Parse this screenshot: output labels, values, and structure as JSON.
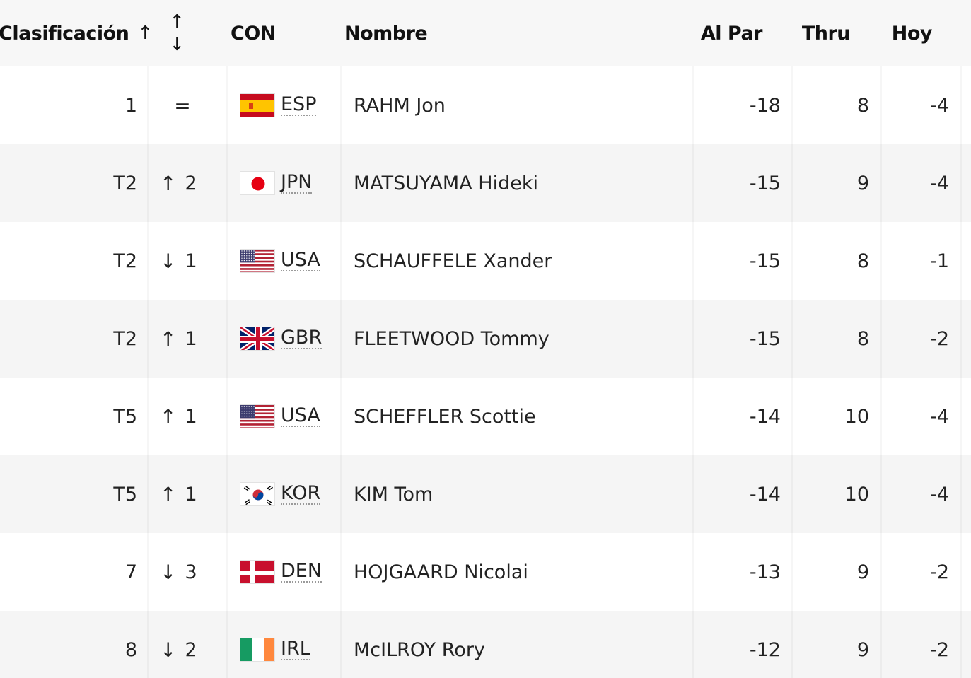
{
  "header": {
    "rank": "Clasificación",
    "rank_sort_icon": "↑",
    "move_up_icon": "↑",
    "move_down_icon": "↓",
    "con": "CON",
    "name": "Nombre",
    "to_par": "Al Par",
    "thru": "Thru",
    "today": "Hoy"
  },
  "rows": [
    {
      "rank": "1",
      "move_dir": "=",
      "move": "",
      "country": "ESP",
      "flag": "spain-flag",
      "name": "RAHM Jon",
      "to_par": "-18",
      "thru": "8",
      "today": "-4"
    },
    {
      "rank": "T2",
      "move_dir": "↑",
      "move": "2",
      "country": "JPN",
      "flag": "japan-flag",
      "name": "MATSUYAMA Hideki",
      "to_par": "-15",
      "thru": "9",
      "today": "-4"
    },
    {
      "rank": "T2",
      "move_dir": "↓",
      "move": "1",
      "country": "USA",
      "flag": "usa-flag",
      "name": "SCHAUFFELE Xander",
      "to_par": "-15",
      "thru": "8",
      "today": "-1"
    },
    {
      "rank": "T2",
      "move_dir": "↑",
      "move": "1",
      "country": "GBR",
      "flag": "uk-flag",
      "name": "FLEETWOOD Tommy",
      "to_par": "-15",
      "thru": "8",
      "today": "-2"
    },
    {
      "rank": "T5",
      "move_dir": "↑",
      "move": "1",
      "country": "USA",
      "flag": "usa-flag",
      "name": "SCHEFFLER Scottie",
      "to_par": "-14",
      "thru": "10",
      "today": "-4"
    },
    {
      "rank": "T5",
      "move_dir": "↑",
      "move": "1",
      "country": "KOR",
      "flag": "south-korea-flag",
      "name": "KIM Tom",
      "to_par": "-14",
      "thru": "10",
      "today": "-4"
    },
    {
      "rank": "7",
      "move_dir": "↓",
      "move": "3",
      "country": "DEN",
      "flag": "denmark-flag",
      "name": "HOJGAARD Nicolai",
      "to_par": "-13",
      "thru": "9",
      "today": "-2"
    },
    {
      "rank": "8",
      "move_dir": "↓",
      "move": "2",
      "country": "IRL",
      "flag": "ireland-flag",
      "name": "McILROY Rory",
      "to_par": "-12",
      "thru": "9",
      "today": "-2"
    }
  ],
  "colors": {
    "header_bg": "#f7f7f7",
    "row_alt_bg": "#f5f5f5",
    "text": "#222222"
  }
}
